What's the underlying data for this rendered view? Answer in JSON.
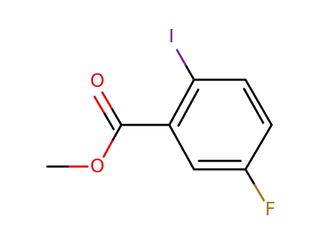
{
  "atoms": [
    {
      "label": "I"
    },
    {
      "label": "O"
    },
    {
      "label": "O"
    },
    {
      "label": "F"
    }
  ]
}
